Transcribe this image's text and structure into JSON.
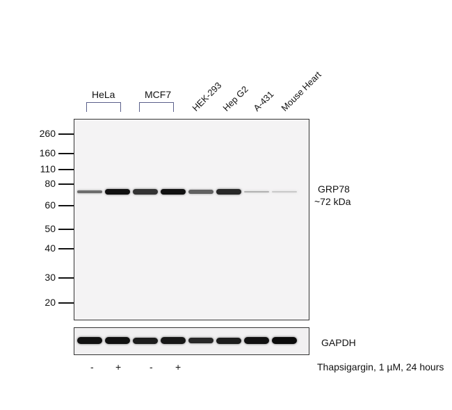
{
  "groups": [
    {
      "label": "HeLa"
    },
    {
      "label": "MCF7"
    }
  ],
  "lanes": [
    {
      "label": "HEK-293"
    },
    {
      "label": "Hep G2"
    },
    {
      "label": "A-431"
    },
    {
      "label": "Mouse Heart"
    }
  ],
  "markers": [
    "260",
    "160",
    "110",
    "80",
    "60",
    "50",
    "40",
    "30",
    "20"
  ],
  "target": {
    "name": "GRP78",
    "size": "~72 kDa"
  },
  "loading_control": "GAPDH",
  "treatment": {
    "signs": [
      "-",
      "+",
      "-",
      "+"
    ],
    "label": "Thapsigargin, 1 µM, 24 hours"
  },
  "band_intensity": {
    "grp78": [
      0.55,
      0.95,
      0.8,
      0.95,
      0.6,
      0.85,
      0.25,
      0.15
    ],
    "gapdh": [
      0.95,
      0.95,
      0.9,
      0.92,
      0.85,
      0.9,
      0.95,
      0.98
    ]
  }
}
